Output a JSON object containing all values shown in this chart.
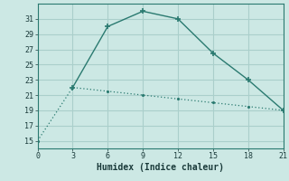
{
  "xlabel": "Humidex (Indice chaleur)",
  "line1_x": [
    0,
    3,
    6,
    9,
    12,
    15,
    18,
    21
  ],
  "line1_y": [
    15,
    22,
    21.5,
    21,
    20.5,
    20,
    19.5,
    19
  ],
  "line2_x": [
    3,
    6,
    9,
    12,
    15,
    18,
    21
  ],
  "line2_y": [
    22,
    30,
    32,
    31,
    26.5,
    23,
    19
  ],
  "line_color": "#2a7a70",
  "bg_color": "#cce8e4",
  "grid_color": "#aacfcb",
  "xlim": [
    0,
    21
  ],
  "ylim": [
    14,
    33
  ],
  "xticks": [
    0,
    3,
    6,
    9,
    12,
    15,
    18,
    21
  ],
  "yticks": [
    15,
    17,
    19,
    21,
    23,
    25,
    27,
    29,
    31
  ]
}
